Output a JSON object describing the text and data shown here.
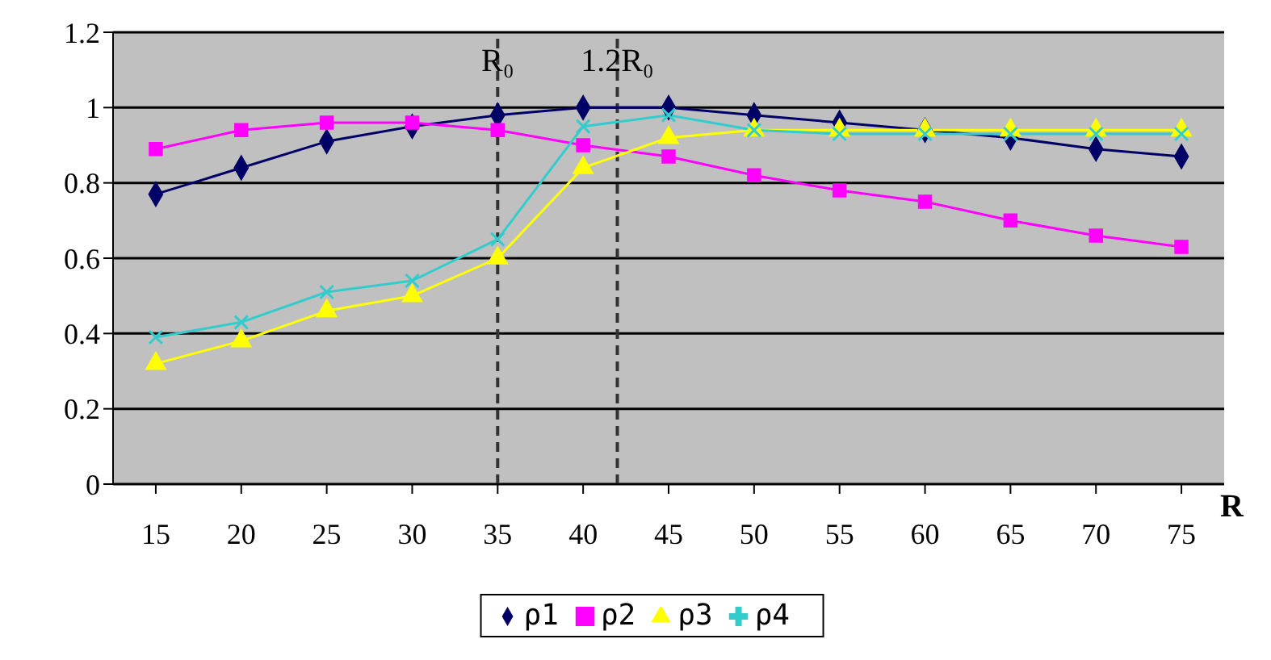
{
  "chart_data": {
    "type": "line",
    "xlabel": "R",
    "x": [
      15,
      20,
      25,
      30,
      35,
      40,
      45,
      50,
      55,
      60,
      65,
      70,
      75
    ],
    "xlim": [
      12.5,
      77.5
    ],
    "xticks": [
      15,
      20,
      25,
      30,
      35,
      40,
      45,
      50,
      55,
      60,
      65,
      70,
      75
    ],
    "ylim": [
      0,
      1.2
    ],
    "yticks": [
      0,
      0.2,
      0.4,
      0.6,
      0.8,
      1,
      1.2
    ],
    "grid": "y",
    "legend": "bottom",
    "series": [
      {
        "name": "ρ1",
        "color": "#000066",
        "marker": "diamond",
        "values": [
          0.77,
          0.84,
          0.91,
          0.95,
          0.98,
          1.0,
          1.0,
          0.98,
          0.96,
          0.94,
          0.92,
          0.89,
          0.87
        ]
      },
      {
        "name": "ρ2",
        "color": "#ff00ff",
        "marker": "square",
        "values": [
          0.89,
          0.94,
          0.96,
          0.96,
          0.94,
          0.9,
          0.87,
          0.82,
          0.78,
          0.75,
          0.7,
          0.66,
          0.63
        ]
      },
      {
        "name": "ρ3",
        "color": "#ffff00",
        "marker": "triangle",
        "values": [
          0.32,
          0.38,
          0.46,
          0.5,
          0.6,
          0.84,
          0.92,
          0.94,
          0.94,
          0.94,
          0.94,
          0.94,
          0.94
        ]
      },
      {
        "name": "ρ4",
        "color": "#33cccc",
        "marker": "cross",
        "values": [
          0.39,
          0.43,
          0.51,
          0.54,
          0.65,
          0.95,
          0.98,
          0.94,
          0.93,
          0.93,
          0.93,
          0.93,
          0.93
        ]
      }
    ],
    "ref_lines": [
      {
        "axis": "x",
        "value": 35,
        "label": "R₀",
        "line_style": "dashed"
      },
      {
        "axis": "x",
        "value": 42,
        "label": "1.2R₀",
        "line_style": "dashed"
      }
    ]
  }
}
